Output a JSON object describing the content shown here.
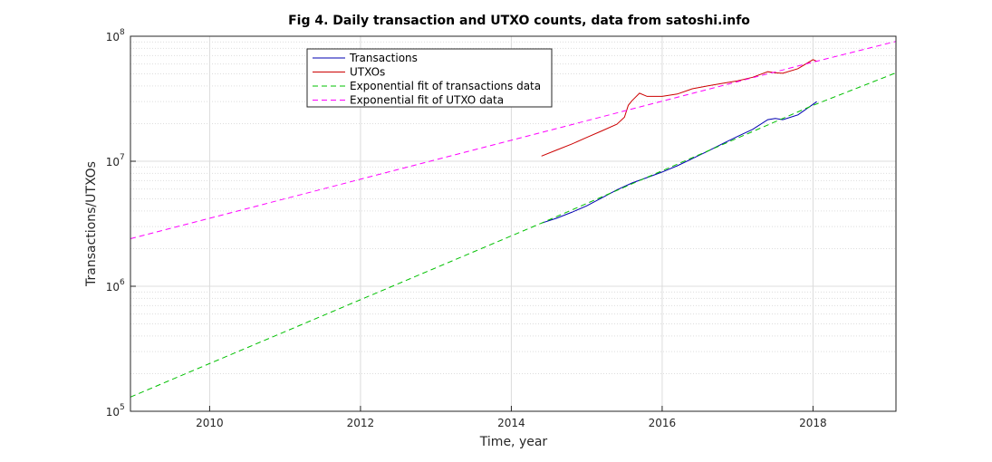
{
  "chart_data": {
    "type": "line",
    "title": "Fig 4. Daily transaction and UTXO counts, data from satoshi.info",
    "xlabel": "Time, year",
    "ylabel": "Transactions/UTXOs",
    "xlim": [
      2008.95,
      2019.1
    ],
    "ylim": [
      100000,
      100000000
    ],
    "yscale": "log",
    "grid": "on",
    "legend_position": "top-left-center",
    "x_ticks": [
      2010,
      2012,
      2014,
      2016,
      2018
    ],
    "y_ticks": [
      {
        "value": 100000,
        "base": "10",
        "exp": "5"
      },
      {
        "value": 1000000,
        "base": "10",
        "exp": "6"
      },
      {
        "value": 10000000,
        "base": "10",
        "exp": "7"
      },
      {
        "value": 100000000,
        "base": "10",
        "exp": "8"
      }
    ],
    "series": [
      {
        "name": "Transactions",
        "color": "#0000b0",
        "style": "solid",
        "x": [
          2014.4,
          2014.6,
          2014.8,
          2015.0,
          2015.2,
          2015.4,
          2015.6,
          2015.8,
          2016.0,
          2016.2,
          2016.4,
          2016.6,
          2016.8,
          2017.0,
          2017.2,
          2017.4,
          2017.5,
          2017.6,
          2017.8,
          2018.0,
          2018.05
        ],
        "y": [
          3200000,
          3500000,
          3900000,
          4400000,
          5100000,
          5900000,
          6700000,
          7400000,
          8200000,
          9200000,
          10500000,
          12000000,
          13800000,
          15800000,
          18000000,
          21500000,
          22000000,
          21500000,
          23500000,
          28500000,
          30000000
        ]
      },
      {
        "name": "UTXOs",
        "color": "#cc0000",
        "style": "solid",
        "x": [
          2014.4,
          2014.6,
          2014.8,
          2015.0,
          2015.2,
          2015.4,
          2015.5,
          2015.55,
          2015.6,
          2015.7,
          2015.8,
          2016.0,
          2016.2,
          2016.4,
          2016.6,
          2016.8,
          2017.0,
          2017.2,
          2017.4,
          2017.5,
          2017.6,
          2017.8,
          2018.0,
          2018.05
        ],
        "y": [
          11000000,
          12300000,
          13700000,
          15500000,
          17500000,
          19800000,
          22500000,
          28000000,
          30500000,
          35000000,
          33000000,
          33000000,
          34500000,
          38000000,
          40000000,
          42000000,
          44000000,
          47000000,
          52000000,
          51000000,
          50500000,
          55000000,
          65000000,
          63000000
        ]
      },
      {
        "name": "Exponential fit of transactions data",
        "color": "#00c000",
        "style": "dashed",
        "x": [
          2008.95,
          2014.4,
          2018.0,
          2019.1
        ],
        "y": [
          130000,
          3200000,
          28000000,
          51000000
        ]
      },
      {
        "name": "Exponential fit of UTXO data",
        "color": "#ff00ff",
        "style": "dashed",
        "x": [
          2008.95,
          2014.4,
          2018.0,
          2019.1
        ],
        "y": [
          2400000,
          17000000,
          62000000,
          91000000
        ]
      }
    ]
  }
}
